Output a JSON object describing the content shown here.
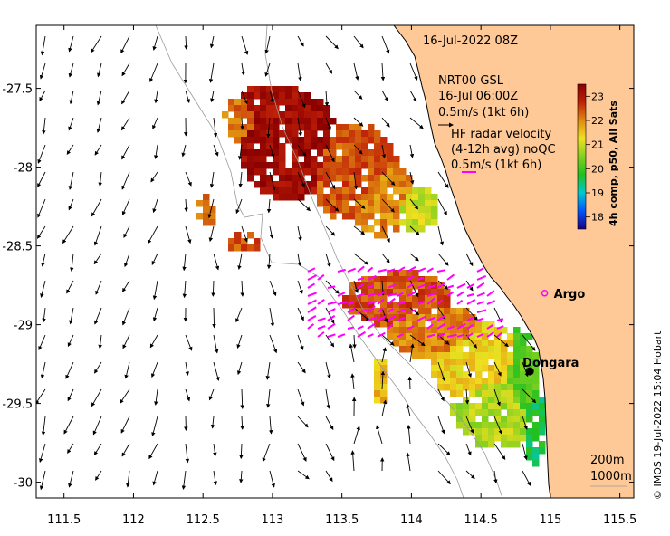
{
  "header": {
    "date_label": "16-Jul-2022 08Z"
  },
  "model_legend": {
    "line1": "NRT00 GSL",
    "line2": "16-Jul 06:00Z",
    "line3": "0.5m/s (1kt 6h)"
  },
  "radar_legend": {
    "line1": "HF radar velocity",
    "line2": "(4-12h avg) noQC",
    "line3": "0.5m/s (1kt 6h)",
    "arrow_color": "#ff00ff"
  },
  "colorbar": {
    "title": "4h comp, p50, All Sats",
    "ticks": [
      "18",
      "19",
      "20",
      "21",
      "22",
      "23"
    ],
    "min": 17.5,
    "max": 23.5,
    "stops": [
      "#1a0080",
      "#0055ff",
      "#00c8d0",
      "#20c020",
      "#80d020",
      "#f0e020",
      "#e08a10",
      "#c02008",
      "#8a0000"
    ]
  },
  "places": [
    {
      "name": "Argo",
      "lon": 115.05,
      "lat": -28.8,
      "marker": "circle"
    },
    {
      "name": "Dongara",
      "lon": 114.93,
      "lat": -29.25,
      "marker": "dot"
    }
  ],
  "depth_contours": {
    "label_200": "200m",
    "label_1000": "1000m"
  },
  "axes": {
    "lon_ticks": [
      "111.5",
      "112",
      "112.5",
      "113",
      "113.5",
      "114",
      "114.5",
      "115",
      "115.5"
    ],
    "lat_ticks": [
      "-27.5",
      "-28",
      "-28.5",
      "-29",
      "-29.5",
      "-30"
    ],
    "lon_range": [
      111.3,
      115.6
    ],
    "lat_range": [
      -27.1,
      -30.1
    ]
  },
  "credit": "© IMOS 19-Jul-2022 15:04 Hobart",
  "land_color": "#fec997"
}
